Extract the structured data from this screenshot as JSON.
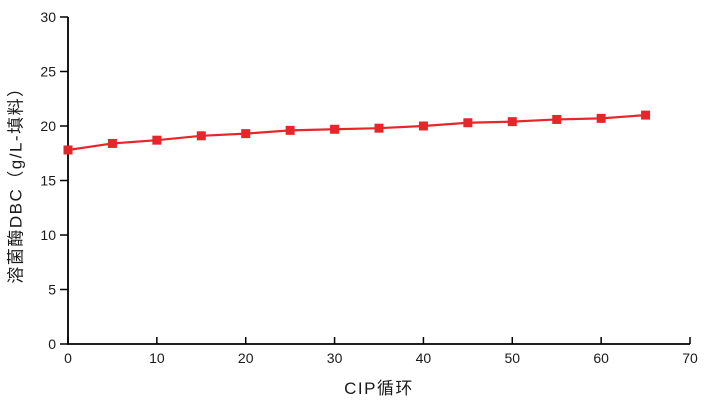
{
  "page": {
    "background_color": "#ffffff"
  },
  "chart_data": {
    "type": "line",
    "title": "",
    "xlabel": "CIP循环",
    "ylabel": "溶菌酶DBC（g/L-填料）",
    "x": [
      0,
      5,
      10,
      15,
      20,
      25,
      30,
      35,
      40,
      45,
      50,
      55,
      60,
      65
    ],
    "series": [
      {
        "values": [
          17.8,
          18.4,
          18.7,
          19.1,
          19.3,
          19.6,
          19.7,
          19.8,
          20.0,
          20.3,
          20.4,
          20.6,
          20.7,
          21.0
        ],
        "color": "#e8262a",
        "marker": "square",
        "marker_size": 9,
        "line_width": 2.2
      }
    ],
    "xlim": [
      0,
      70
    ],
    "ylim": [
      0,
      30
    ],
    "xticks": [
      0,
      10,
      20,
      30,
      40,
      50,
      60,
      70
    ],
    "yticks": [
      0,
      5,
      10,
      15,
      20,
      25,
      30
    ],
    "grid": false,
    "legend": "none",
    "axis_color": "#000000",
    "tick_label_color": "#1a1a1a",
    "tick_label_font_size": 14
  }
}
